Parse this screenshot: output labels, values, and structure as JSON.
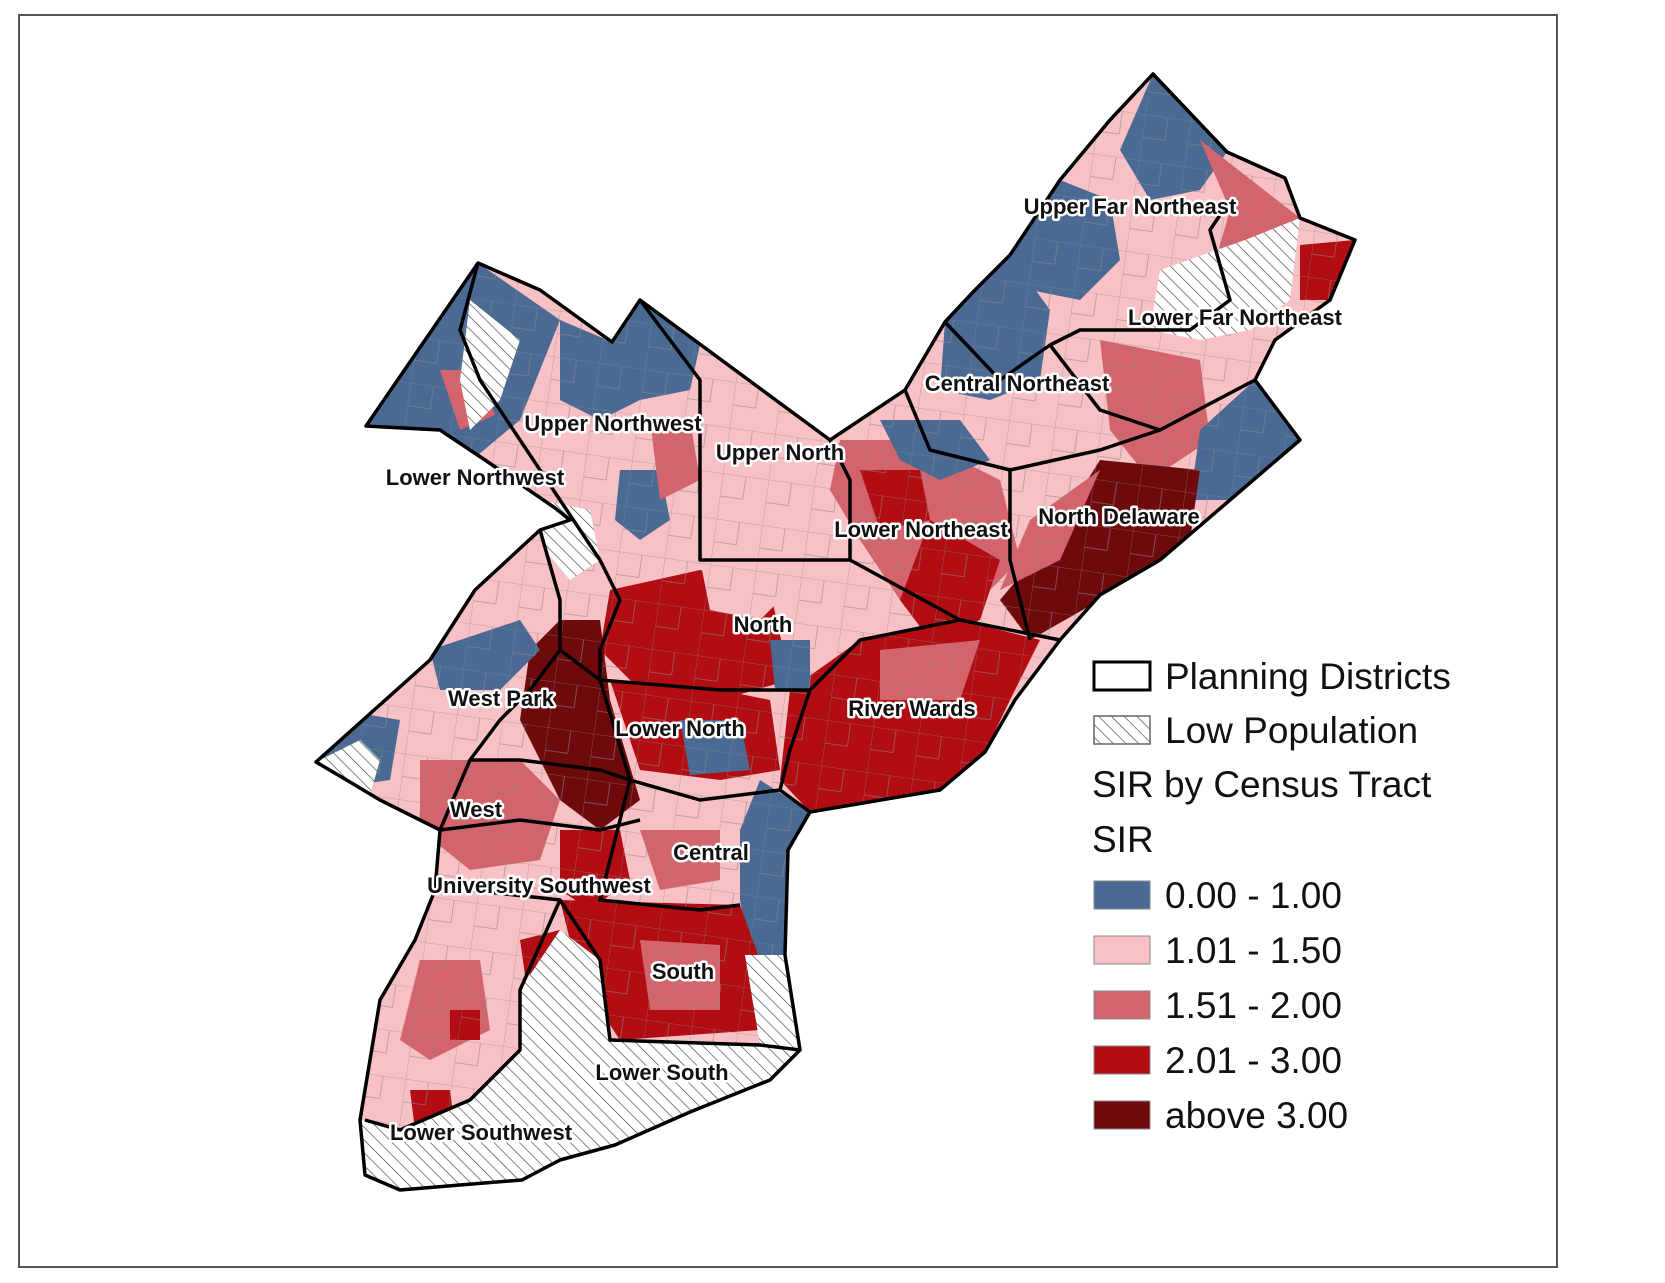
{
  "colors": {
    "sir_0_1": "#4a6a93",
    "sir_1_15": "#f7c1c5",
    "sir_15_2": "#d4646c",
    "sir_2_3": "#b10d12",
    "sir_above_3": "#6e0a0b",
    "district_border": "#000000",
    "tract_border": "#777777"
  },
  "districts": [
    {
      "name": "Upper Far Northeast"
    },
    {
      "name": "Lower Far Northeast"
    },
    {
      "name": "Central Northeast"
    },
    {
      "name": "Upper Northwest"
    },
    {
      "name": "Upper North"
    },
    {
      "name": "Lower Northwest"
    },
    {
      "name": "Lower Northeast"
    },
    {
      "name": "North Delaware"
    },
    {
      "name": "North"
    },
    {
      "name": "River Wards"
    },
    {
      "name": "West Park"
    },
    {
      "name": "Lower North"
    },
    {
      "name": "West"
    },
    {
      "name": "Central"
    },
    {
      "name": "University Southwest"
    },
    {
      "name": "South"
    },
    {
      "name": "Lower South"
    },
    {
      "name": "Lower Southwest"
    }
  ],
  "legend": {
    "planning_districts": "Planning Districts",
    "low_population": "Low Population",
    "sir_by_tract": "SIR by Census Tract",
    "sir_heading": "SIR",
    "classes": [
      {
        "label": "0.00 - 1.00",
        "color_key": "sir_0_1"
      },
      {
        "label": "1.01 - 1.50",
        "color_key": "sir_1_15"
      },
      {
        "label": "1.51 - 2.00",
        "color_key": "sir_15_2"
      },
      {
        "label": "2.01 - 3.00",
        "color_key": "sir_2_3"
      },
      {
        "label": "above 3.00",
        "color_key": "sir_above_3"
      }
    ]
  }
}
